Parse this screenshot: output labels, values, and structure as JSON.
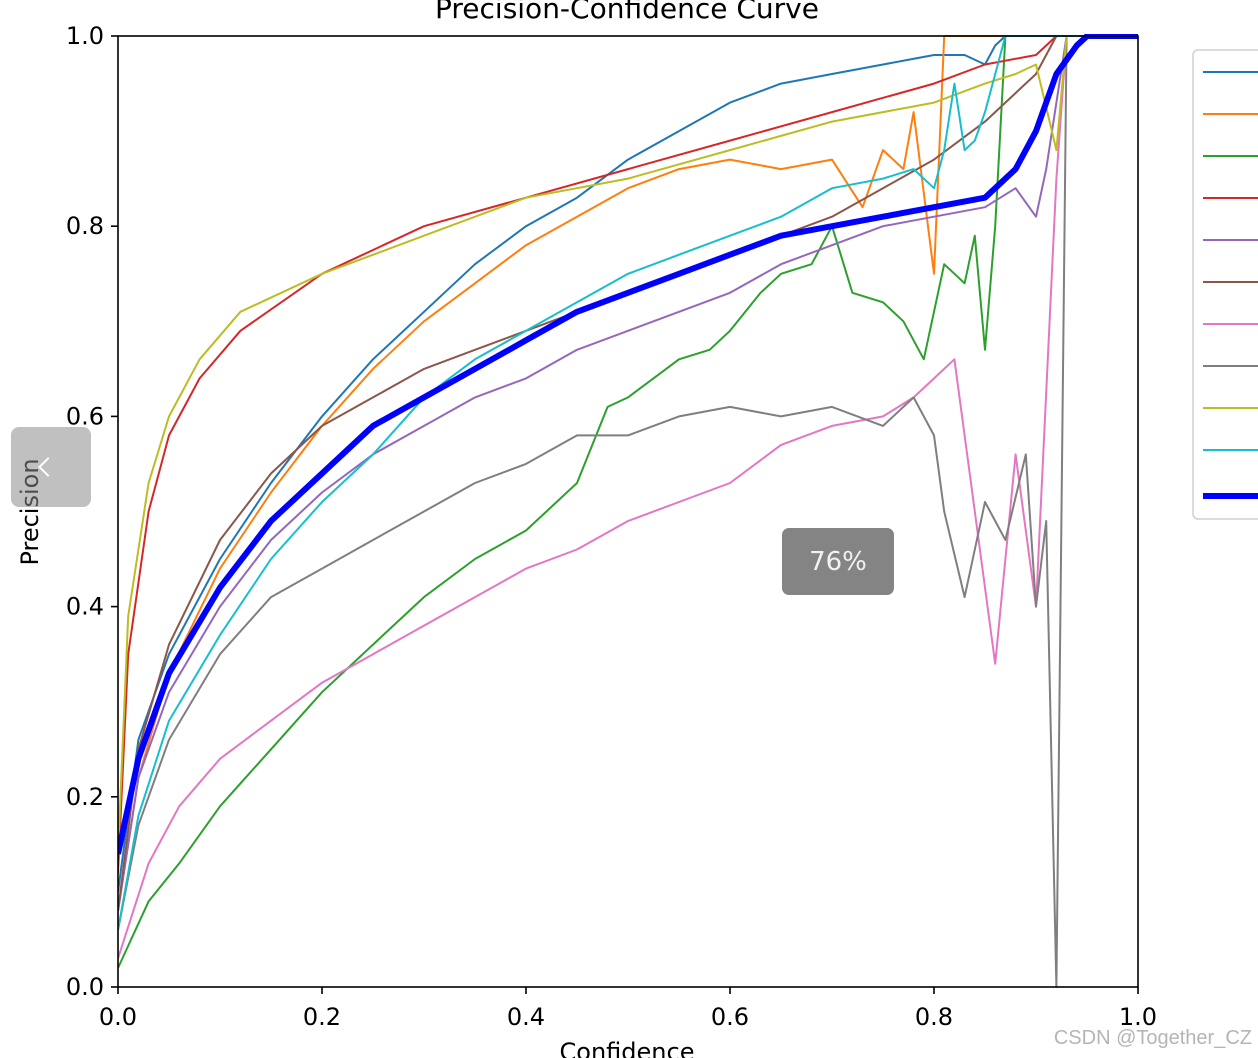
{
  "viewer": {
    "zoom_level": "76%",
    "prev_label": "previous image",
    "watermark": "CSDN @Together_CZ"
  },
  "chart_data": {
    "type": "line",
    "title": "Precision-Confidence Curve",
    "xlabel": "Confidence",
    "ylabel": "Precision",
    "xlim": [
      0.0,
      1.0
    ],
    "ylim": [
      0.0,
      1.0
    ],
    "xticks": [
      "0.0",
      "0.2",
      "0.4",
      "0.6",
      "0.8",
      "1.0"
    ],
    "yticks": [
      "0.0",
      "0.2",
      "0.4",
      "0.6",
      "0.8",
      "1.0"
    ],
    "grid": false,
    "legend": "right, entry text cropped",
    "series": [
      {
        "color": "#1f77b4",
        "width": 2,
        "x": [
          0.0,
          0.02,
          0.05,
          0.1,
          0.15,
          0.2,
          0.25,
          0.3,
          0.35,
          0.4,
          0.45,
          0.5,
          0.55,
          0.6,
          0.65,
          0.7,
          0.75,
          0.8,
          0.83,
          0.85,
          0.86,
          0.87,
          0.88,
          1.0
        ],
        "y": [
          0.1,
          0.26,
          0.35,
          0.45,
          0.53,
          0.6,
          0.66,
          0.71,
          0.76,
          0.8,
          0.83,
          0.87,
          0.9,
          0.93,
          0.95,
          0.96,
          0.97,
          0.98,
          0.98,
          0.97,
          0.99,
          1.0,
          1.0,
          1.0
        ]
      },
      {
        "color": "#ff7f0e",
        "width": 2,
        "x": [
          0.0,
          0.02,
          0.05,
          0.1,
          0.15,
          0.2,
          0.25,
          0.3,
          0.35,
          0.4,
          0.45,
          0.5,
          0.55,
          0.6,
          0.65,
          0.7,
          0.73,
          0.75,
          0.77,
          0.78,
          0.8,
          0.81,
          0.83,
          1.0
        ],
        "y": [
          0.08,
          0.22,
          0.33,
          0.44,
          0.52,
          0.59,
          0.65,
          0.7,
          0.74,
          0.78,
          0.81,
          0.84,
          0.86,
          0.87,
          0.86,
          0.87,
          0.82,
          0.88,
          0.86,
          0.92,
          0.75,
          1.0,
          1.0,
          1.0
        ]
      },
      {
        "color": "#2ca02c",
        "width": 2,
        "x": [
          0.0,
          0.03,
          0.06,
          0.1,
          0.15,
          0.2,
          0.25,
          0.3,
          0.35,
          0.4,
          0.45,
          0.48,
          0.5,
          0.55,
          0.58,
          0.6,
          0.63,
          0.65,
          0.68,
          0.7,
          0.72,
          0.75,
          0.77,
          0.79,
          0.81,
          0.83,
          0.84,
          0.85,
          0.86,
          0.87,
          0.88,
          1.0
        ],
        "y": [
          0.02,
          0.09,
          0.13,
          0.19,
          0.25,
          0.31,
          0.36,
          0.41,
          0.45,
          0.48,
          0.53,
          0.61,
          0.62,
          0.66,
          0.67,
          0.69,
          0.73,
          0.75,
          0.76,
          0.8,
          0.73,
          0.72,
          0.7,
          0.66,
          0.76,
          0.74,
          0.79,
          0.67,
          0.8,
          1.0,
          1.0,
          1.0
        ]
      },
      {
        "color": "#d62728",
        "width": 2,
        "x": [
          0.0,
          0.01,
          0.03,
          0.05,
          0.08,
          0.12,
          0.2,
          0.3,
          0.4,
          0.5,
          0.6,
          0.7,
          0.8,
          0.85,
          0.9,
          0.92,
          1.0
        ],
        "y": [
          0.12,
          0.35,
          0.5,
          0.58,
          0.64,
          0.69,
          0.75,
          0.8,
          0.83,
          0.86,
          0.89,
          0.92,
          0.95,
          0.97,
          0.98,
          1.0,
          1.0
        ]
      },
      {
        "color": "#9467bd",
        "width": 2,
        "x": [
          0.0,
          0.02,
          0.05,
          0.1,
          0.15,
          0.2,
          0.25,
          0.3,
          0.35,
          0.4,
          0.45,
          0.5,
          0.55,
          0.6,
          0.65,
          0.7,
          0.75,
          0.8,
          0.85,
          0.88,
          0.9,
          0.91,
          0.93,
          1.0
        ],
        "y": [
          0.08,
          0.22,
          0.31,
          0.4,
          0.47,
          0.52,
          0.56,
          0.59,
          0.62,
          0.64,
          0.67,
          0.69,
          0.71,
          0.73,
          0.76,
          0.78,
          0.8,
          0.81,
          0.82,
          0.84,
          0.81,
          0.86,
          1.0,
          1.0
        ]
      },
      {
        "color": "#8c564b",
        "width": 2,
        "x": [
          0.0,
          0.02,
          0.05,
          0.1,
          0.15,
          0.2,
          0.25,
          0.3,
          0.35,
          0.4,
          0.45,
          0.5,
          0.55,
          0.6,
          0.65,
          0.7,
          0.75,
          0.8,
          0.85,
          0.9,
          0.92,
          1.0
        ],
        "y": [
          0.08,
          0.25,
          0.36,
          0.47,
          0.54,
          0.59,
          0.62,
          0.65,
          0.67,
          0.69,
          0.71,
          0.73,
          0.75,
          0.77,
          0.79,
          0.81,
          0.84,
          0.87,
          0.91,
          0.96,
          1.0,
          1.0
        ]
      },
      {
        "color": "#e377c2",
        "width": 2,
        "x": [
          0.0,
          0.03,
          0.06,
          0.1,
          0.15,
          0.2,
          0.25,
          0.3,
          0.35,
          0.4,
          0.45,
          0.5,
          0.55,
          0.6,
          0.65,
          0.7,
          0.75,
          0.78,
          0.8,
          0.82,
          0.84,
          0.86,
          0.88,
          0.9,
          0.92,
          0.93,
          1.0
        ],
        "y": [
          0.03,
          0.13,
          0.19,
          0.24,
          0.28,
          0.32,
          0.35,
          0.38,
          0.41,
          0.44,
          0.46,
          0.49,
          0.51,
          0.53,
          0.57,
          0.59,
          0.6,
          0.62,
          0.64,
          0.66,
          0.5,
          0.34,
          0.56,
          0.4,
          0.85,
          1.0,
          1.0
        ]
      },
      {
        "color": "#7f7f7f",
        "width": 2,
        "x": [
          0.0,
          0.02,
          0.05,
          0.1,
          0.15,
          0.2,
          0.25,
          0.3,
          0.35,
          0.4,
          0.45,
          0.5,
          0.55,
          0.6,
          0.65,
          0.7,
          0.75,
          0.78,
          0.8,
          0.81,
          0.83,
          0.85,
          0.87,
          0.89,
          0.9,
          0.91,
          0.92,
          0.93,
          1.0
        ],
        "y": [
          0.06,
          0.17,
          0.26,
          0.35,
          0.41,
          0.44,
          0.47,
          0.5,
          0.53,
          0.55,
          0.58,
          0.58,
          0.6,
          0.61,
          0.6,
          0.61,
          0.59,
          0.62,
          0.58,
          0.5,
          0.41,
          0.51,
          0.47,
          0.56,
          0.4,
          0.49,
          0.0,
          1.0,
          1.0
        ]
      },
      {
        "color": "#bcbd22",
        "width": 2,
        "x": [
          0.0,
          0.01,
          0.03,
          0.05,
          0.08,
          0.12,
          0.2,
          0.3,
          0.4,
          0.5,
          0.6,
          0.7,
          0.8,
          0.85,
          0.88,
          0.9,
          0.92,
          0.93,
          0.94,
          1.0
        ],
        "y": [
          0.14,
          0.39,
          0.53,
          0.6,
          0.66,
          0.71,
          0.75,
          0.79,
          0.83,
          0.85,
          0.88,
          0.91,
          0.93,
          0.95,
          0.96,
          0.97,
          0.88,
          1.0,
          1.0,
          1.0
        ]
      },
      {
        "color": "#17becf",
        "width": 2,
        "x": [
          0.0,
          0.02,
          0.05,
          0.1,
          0.15,
          0.2,
          0.25,
          0.3,
          0.35,
          0.4,
          0.45,
          0.5,
          0.55,
          0.6,
          0.65,
          0.7,
          0.75,
          0.78,
          0.8,
          0.81,
          0.82,
          0.83,
          0.84,
          0.85,
          0.87,
          0.88,
          1.0
        ],
        "y": [
          0.06,
          0.18,
          0.28,
          0.37,
          0.45,
          0.51,
          0.56,
          0.62,
          0.66,
          0.69,
          0.72,
          0.75,
          0.77,
          0.79,
          0.81,
          0.84,
          0.85,
          0.86,
          0.84,
          0.88,
          0.95,
          0.88,
          0.89,
          0.92,
          1.0,
          1.0,
          1.0
        ]
      },
      {
        "color": "#0000ff",
        "width": 6,
        "x": [
          0.0,
          0.02,
          0.05,
          0.1,
          0.15,
          0.2,
          0.25,
          0.3,
          0.35,
          0.4,
          0.45,
          0.5,
          0.55,
          0.6,
          0.65,
          0.7,
          0.75,
          0.8,
          0.85,
          0.88,
          0.9,
          0.92,
          0.94,
          0.95,
          0.97,
          1.0
        ],
        "y": [
          0.14,
          0.24,
          0.33,
          0.42,
          0.49,
          0.54,
          0.59,
          0.62,
          0.65,
          0.68,
          0.71,
          0.73,
          0.75,
          0.77,
          0.79,
          0.8,
          0.81,
          0.82,
          0.83,
          0.86,
          0.9,
          0.96,
          0.99,
          1.0,
          1.0,
          1.0
        ]
      }
    ]
  }
}
